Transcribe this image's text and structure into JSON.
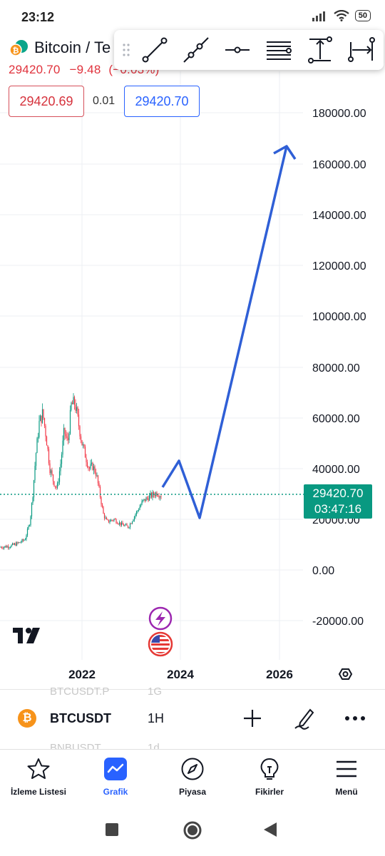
{
  "status_bar": {
    "time": "23:12",
    "battery": "50"
  },
  "symbol": {
    "title": "Bitcoin / Te",
    "last_price": "29420.70",
    "change": "−9.48",
    "change_pct": "(−0.03%)"
  },
  "quote": {
    "bid": "29420.69",
    "spread": "0.01",
    "ask": "29420.70"
  },
  "toolbar": {
    "tools": [
      "trend-line-icon",
      "ray-icon",
      "horizontal-line-icon",
      "parallel-channel-icon",
      "price-range-icon",
      "date-range-icon"
    ]
  },
  "chart": {
    "y_ticks": [
      "180000.00",
      "160000.00",
      "140000.00",
      "120000.00",
      "100000.00",
      "80000.00",
      "60000.00",
      "40000.00",
      "20000.00",
      "0.00",
      "-20000.00"
    ],
    "x_ticks": [
      "2022",
      "2024",
      "2026"
    ],
    "current_price": "29420.70",
    "countdown": "03:47:16",
    "colors": {
      "up": "#089981",
      "down": "#f23645",
      "projection": "#2f5fd6",
      "price_tag": "#089981"
    }
  },
  "watchlist": {
    "prev_row": {
      "symbol": "BTCUSDT.P",
      "interval": "1G"
    },
    "current": {
      "coin_glyph": "₿",
      "symbol": "BTCUSDT",
      "interval": "1H"
    },
    "next_row": {
      "symbol": "BNBUSDT",
      "interval": "1d"
    }
  },
  "nav": {
    "items": [
      {
        "label": "İzleme Listesi",
        "icon": "star-icon"
      },
      {
        "label": "Grafik",
        "icon": "chart-icon",
        "active": true
      },
      {
        "label": "Piyasa",
        "icon": "compass-icon"
      },
      {
        "label": "Fikirler",
        "icon": "lightbulb-icon"
      },
      {
        "label": "Menü",
        "icon": "menu-icon"
      }
    ]
  }
}
